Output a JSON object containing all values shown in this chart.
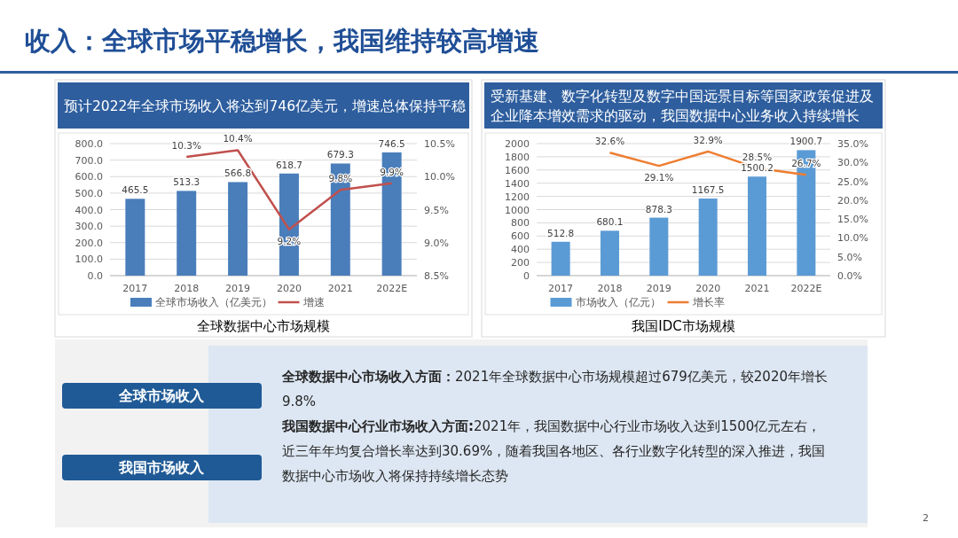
{
  "chart_data": [
    {
      "type": "bar",
      "title": "预计2022年全球市场收入将达到746亿美元，增速总体保持平稳",
      "categories": [
        "2017",
        "2018",
        "2019",
        "2020",
        "2021",
        "2022E"
      ],
      "series": [
        {
          "name": "全球市场收入（亿美元）",
          "type": "bar",
          "color": "#4a7ebb",
          "values": [
            465.5,
            513.3,
            566.8,
            618.7,
            679.3,
            746.5
          ],
          "value_labels": [
            "465.5",
            "513.3",
            "566.8",
            "618.7",
            "679.3",
            "746.5"
          ]
        },
        {
          "name": "增速",
          "type": "line",
          "axis": "y2",
          "color": "#c0504d",
          "values": [
            null,
            10.3,
            10.4,
            9.2,
            9.8,
            9.9
          ],
          "value_labels": [
            null,
            "10.3%",
            "10.4%",
            "9.2%",
            "9.8%",
            "9.9%"
          ]
        }
      ],
      "ylim": [
        0,
        800
      ],
      "yticks": [
        {
          "value": 0,
          "label": "0.0"
        },
        {
          "value": 100,
          "label": "100.0"
        },
        {
          "value": 200,
          "label": "200.0"
        },
        {
          "value": 300,
          "label": "300.0"
        },
        {
          "value": 400,
          "label": "400.0"
        },
        {
          "value": 500,
          "label": "500.0"
        },
        {
          "value": 600,
          "label": "600.0"
        },
        {
          "value": 700,
          "label": "700.0"
        },
        {
          "value": 800,
          "label": "800.0"
        }
      ],
      "y2lim": [
        8.5,
        10.5
      ],
      "y2ticks": [
        {
          "value": 8.5,
          "label": "8.5%"
        },
        {
          "value": 9,
          "label": "9.0%"
        },
        {
          "value": 9.5,
          "label": "9.5%"
        },
        {
          "value": 10,
          "label": "10.0%"
        },
        {
          "value": 10.5,
          "label": "10.5%"
        }
      ],
      "grid": "y",
      "legend": "bottom",
      "marker": "none",
      "annotations": [
        "全球数据中心市场规模"
      ]
    },
    {
      "type": "bar",
      "title": "受新基建、数字化转型及数字中国远景目标等国家政策促进及企业降本增效需求的驱动，我国数据中心业务收入持续增长",
      "categories": [
        "2017",
        "2018",
        "2019",
        "2020",
        "2021",
        "2022E"
      ],
      "series": [
        {
          "name": "市场收入（亿元）",
          "type": "bar",
          "color": "#5b9bd5",
          "values": [
            512.8,
            680.1,
            878.3,
            1167.5,
            1500.2,
            1900.7
          ],
          "value_labels": [
            "512.8",
            "680.1",
            "878.3",
            "1167.5",
            "1500.2",
            "1900.7"
          ]
        },
        {
          "name": "增长率",
          "type": "line",
          "axis": "y2",
          "color": "#ed7d31",
          "values": [
            null,
            32.6,
            29.1,
            32.9,
            28.5,
            26.7
          ],
          "value_labels": [
            null,
            "32.6%",
            "29.1%",
            "32.9%",
            "28.5%",
            "26.7%"
          ]
        }
      ],
      "ylim": [
        0,
        2000
      ],
      "yticks": [
        0,
        200,
        400,
        600,
        800,
        1000,
        1200,
        1400,
        1600,
        1800,
        2000
      ],
      "y2lim": [
        0,
        35
      ],
      "y2ticks": [
        {
          "value": 0,
          "label": "0.0%"
        },
        {
          "value": 5,
          "label": "5.0%"
        },
        {
          "value": 10,
          "label": "10.0%"
        },
        {
          "value": 15,
          "label": "15.0%"
        },
        {
          "value": 20,
          "label": "20.0%"
        },
        {
          "value": 25,
          "label": "25.0%"
        },
        {
          "value": 30,
          "label": "30.0%"
        },
        {
          "value": 35,
          "label": "35.0%"
        }
      ],
      "grid": "y",
      "legend": "bottom",
      "marker": "none",
      "annotations": [
        "我国IDC市场规模"
      ]
    },
    {
      "type": "other",
      "title": "收入：全球市场平稳增长，我国维持较高增速",
      "annotations": [
        "全球市场收入",
        "我国市场收入",
        "全球数据中心市场收入方面：",
        "2021年全球数据中心市场规模超过679亿美元，较2020年增长9.8%",
        "我国数据中心行业市场收入方面:",
        "2021年，我国数据中心行业市场收入达到1500亿元左右，近三年年均复合增长率达到30.69%，随着我国各地区、各行业数字化转型的深入推进，我国数据中心市场收入将保持持续增长态势",
        "2"
      ]
    }
  ]
}
